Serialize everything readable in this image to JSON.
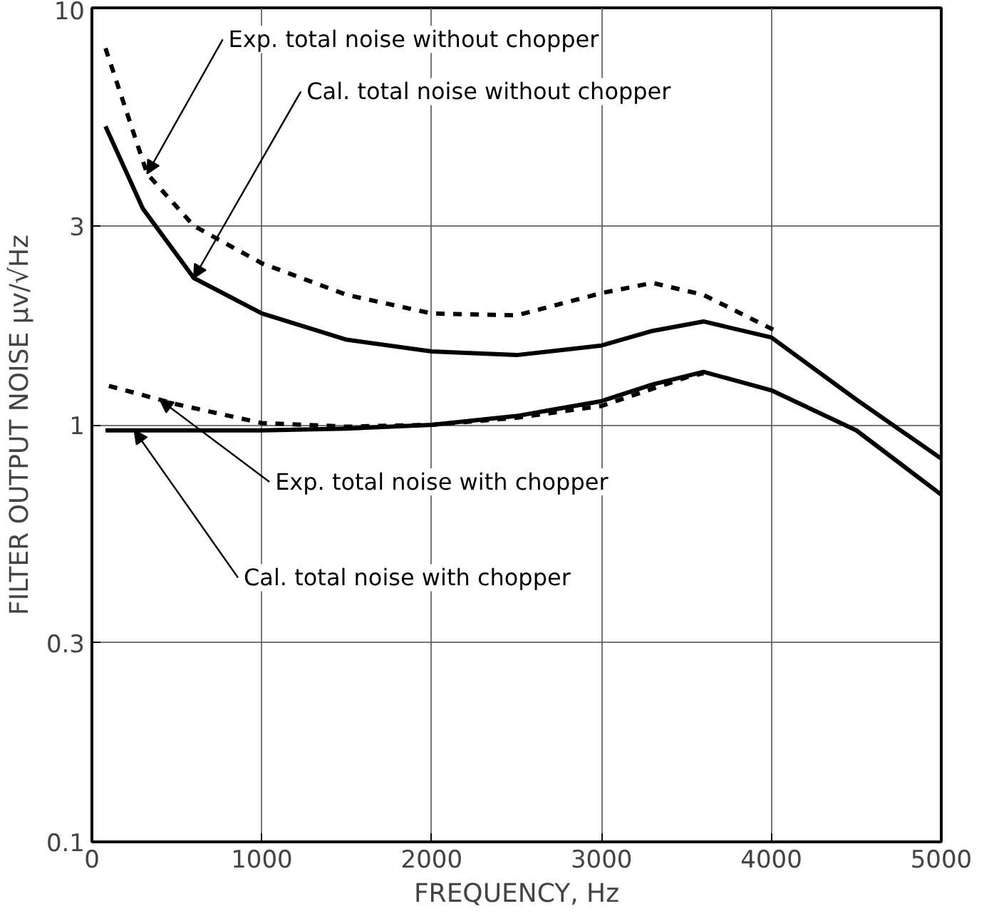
{
  "chart_data": {
    "type": "line",
    "xlabel": "FREQUENCY, Hz",
    "ylabel": "FILTER OUTPUT NOISE μv/√Hz",
    "log": true,
    "grid": true,
    "marker": "none",
    "xlim": [
      0,
      5000
    ],
    "xticks": [
      0,
      1000,
      2000,
      3000,
      4000,
      5000
    ],
    "ylim": [
      0.1,
      10
    ],
    "yticks": [
      {
        "value": 0.1,
        "label": "0.1"
      },
      {
        "value": 0.3,
        "label": "0.3"
      },
      1,
      3,
      10
    ],
    "series": [
      {
        "name": "Exp. total noise without chopper",
        "color": "#000000",
        "line_style": "dashed",
        "x": [
          80,
          325,
          600,
          1000,
          1500,
          2000,
          2500,
          3000,
          3300,
          3600,
          4000,
          4050
        ],
        "values": [
          8.0,
          4.0,
          3.0,
          2.44,
          2.05,
          1.85,
          1.83,
          2.07,
          2.19,
          2.05,
          1.7,
          1.66
        ]
      },
      {
        "name": "Cal. total noise without chopper",
        "color": "#000000",
        "line_style": "solid",
        "x": [
          80,
          300,
          600,
          1000,
          1500,
          2000,
          2500,
          3000,
          3300,
          3600,
          4000,
          4500,
          5000
        ],
        "values": [
          5.2,
          3.3,
          2.25,
          1.85,
          1.6,
          1.5,
          1.47,
          1.55,
          1.68,
          1.77,
          1.62,
          1.15,
          0.83
        ]
      },
      {
        "name": "Exp. total noise with chopper",
        "color": "#000000",
        "line_style": "dashed",
        "x": [
          100,
          500,
          1000,
          1500,
          2000,
          2500,
          3000,
          3500,
          3600
        ],
        "values": [
          1.24,
          1.12,
          1.01,
          0.99,
          1.0,
          1.04,
          1.11,
          1.3,
          1.33
        ]
      },
      {
        "name": "Cal. total noise with chopper",
        "color": "#000000",
        "line_style": "solid",
        "x": [
          80,
          500,
          1000,
          1500,
          2000,
          2500,
          3000,
          3300,
          3600,
          4000,
          4500,
          5000
        ],
        "values": [
          0.97,
          0.97,
          0.97,
          0.98,
          1.0,
          1.05,
          1.14,
          1.25,
          1.34,
          1.21,
          0.97,
          0.68
        ]
      }
    ]
  }
}
